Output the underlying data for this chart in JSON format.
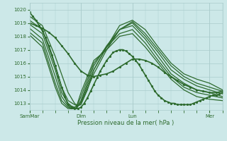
{
  "xlabel": "Pression niveau de la mer( hPa )",
  "bg_color": "#cce8e8",
  "grid_color": "#aacccc",
  "line_color": "#2d6a2d",
  "ylim": [
    1012.5,
    1020.5
  ],
  "yticks": [
    1013,
    1014,
    1015,
    1016,
    1017,
    1018,
    1019,
    1020
  ],
  "xtick_labels": [
    "SamMar",
    "Dim",
    "Lun",
    "Mer"
  ],
  "xtick_positions": [
    0,
    96,
    192,
    336
  ],
  "total_hours": 360,
  "lines": [
    {
      "x": [
        0,
        6,
        12,
        18,
        24,
        30,
        36,
        42,
        48,
        54,
        60,
        66,
        72,
        78,
        84,
        90,
        96,
        102,
        108,
        114,
        120,
        126,
        132,
        138,
        144,
        150,
        156,
        162,
        168,
        174,
        180,
        186,
        192,
        198,
        204,
        210,
        216,
        222,
        228,
        234,
        240,
        246,
        252,
        258,
        264,
        270,
        276,
        282,
        288,
        294,
        300,
        306,
        312,
        318,
        324,
        330,
        336,
        342,
        348,
        354,
        360
      ],
      "y": [
        1019.8,
        1019.5,
        1019.2,
        1018.8,
        1018.4,
        1017.9,
        1017.3,
        1016.6,
        1015.8,
        1015.0,
        1014.2,
        1013.5,
        1012.9,
        1012.7,
        1012.6,
        1012.6,
        1012.7,
        1013.0,
        1013.4,
        1013.9,
        1014.4,
        1014.9,
        1015.4,
        1015.8,
        1016.2,
        1016.5,
        1016.8,
        1016.9,
        1017.0,
        1017.0,
        1016.9,
        1016.7,
        1016.5,
        1016.2,
        1015.9,
        1015.5,
        1015.1,
        1014.7,
        1014.3,
        1013.9,
        1013.6,
        1013.4,
        1013.2,
        1013.1,
        1013.0,
        1013.0,
        1012.9,
        1012.9,
        1012.9,
        1012.9,
        1012.9,
        1013.0,
        1013.1,
        1013.2,
        1013.3,
        1013.4,
        1013.5,
        1013.6,
        1013.6,
        1013.7,
        1013.8
      ],
      "marker": true,
      "lw": 1.2
    },
    {
      "x": [
        0,
        24,
        48,
        72,
        84,
        90,
        96,
        108,
        120,
        144,
        168,
        192,
        216,
        240,
        264,
        288,
        312,
        336,
        360
      ],
      "y": [
        1019.5,
        1018.8,
        1016.5,
        1013.8,
        1013.0,
        1012.8,
        1012.9,
        1014.0,
        1015.5,
        1017.2,
        1018.8,
        1019.2,
        1018.5,
        1017.2,
        1016.0,
        1015.2,
        1014.8,
        1014.5,
        1014.0
      ],
      "marker": false,
      "lw": 0.9
    },
    {
      "x": [
        0,
        24,
        48,
        60,
        72,
        84,
        90,
        96,
        120,
        144,
        168,
        192,
        216,
        240,
        264,
        288,
        312,
        336,
        360
      ],
      "y": [
        1019.2,
        1018.5,
        1015.8,
        1014.2,
        1013.2,
        1012.9,
        1012.8,
        1013.0,
        1015.2,
        1017.0,
        1018.5,
        1019.1,
        1018.2,
        1017.0,
        1015.8,
        1015.0,
        1014.5,
        1014.2,
        1013.9
      ],
      "marker": false,
      "lw": 0.9
    },
    {
      "x": [
        0,
        24,
        48,
        60,
        72,
        78,
        84,
        90,
        96,
        120,
        144,
        168,
        192,
        216,
        240,
        264,
        288,
        312,
        336,
        360
      ],
      "y": [
        1018.9,
        1018.2,
        1015.5,
        1013.8,
        1013.0,
        1012.8,
        1012.7,
        1012.8,
        1013.1,
        1015.5,
        1017.2,
        1018.5,
        1019.0,
        1018.0,
        1016.8,
        1015.5,
        1014.8,
        1014.3,
        1014.0,
        1013.7
      ],
      "marker": false,
      "lw": 0.9
    },
    {
      "x": [
        0,
        24,
        48,
        60,
        72,
        78,
        84,
        88,
        96,
        120,
        144,
        168,
        192,
        216,
        240,
        264,
        288,
        312,
        336,
        360
      ],
      "y": [
        1018.6,
        1017.8,
        1015.0,
        1013.5,
        1012.8,
        1012.6,
        1012.6,
        1012.6,
        1013.2,
        1015.8,
        1017.3,
        1018.5,
        1018.8,
        1017.8,
        1016.5,
        1015.2,
        1014.5,
        1014.0,
        1013.8,
        1013.5
      ],
      "marker": false,
      "lw": 0.9
    },
    {
      "x": [
        0,
        24,
        48,
        60,
        72,
        78,
        84,
        88,
        96,
        120,
        144,
        168,
        192,
        216,
        240,
        264,
        288,
        312,
        336,
        360
      ],
      "y": [
        1018.3,
        1017.5,
        1014.5,
        1013.2,
        1012.7,
        1012.6,
        1012.6,
        1012.7,
        1013.5,
        1016.0,
        1017.2,
        1018.2,
        1018.5,
        1017.5,
        1016.2,
        1015.0,
        1014.2,
        1013.8,
        1013.6,
        1013.4
      ],
      "marker": false,
      "lw": 0.9
    },
    {
      "x": [
        0,
        24,
        48,
        60,
        72,
        78,
        84,
        88,
        96,
        120,
        144,
        168,
        192,
        216,
        240,
        264,
        288,
        312,
        336,
        360
      ],
      "y": [
        1018.1,
        1017.2,
        1014.2,
        1013.0,
        1012.6,
        1012.6,
        1012.7,
        1012.8,
        1013.8,
        1016.2,
        1017.0,
        1018.0,
        1018.2,
        1017.2,
        1016.0,
        1014.8,
        1014.0,
        1013.5,
        1013.3,
        1013.2
      ],
      "marker": false,
      "lw": 0.9
    },
    {
      "x": [
        0,
        12,
        24,
        36,
        48,
        60,
        72,
        84,
        96,
        108,
        120,
        132,
        144,
        156,
        168,
        180,
        192,
        204,
        216,
        228,
        240,
        252,
        264,
        276,
        288,
        300,
        312,
        324,
        336,
        348,
        360
      ],
      "y": [
        1019.0,
        1018.8,
        1018.6,
        1018.3,
        1017.9,
        1017.3,
        1016.7,
        1016.0,
        1015.4,
        1015.1,
        1015.0,
        1015.1,
        1015.2,
        1015.4,
        1015.7,
        1016.0,
        1016.3,
        1016.3,
        1016.2,
        1016.0,
        1015.7,
        1015.3,
        1015.0,
        1014.7,
        1014.4,
        1014.2,
        1014.0,
        1013.9,
        1013.8,
        1013.8,
        1013.9
      ],
      "marker": true,
      "lw": 1.2
    }
  ]
}
